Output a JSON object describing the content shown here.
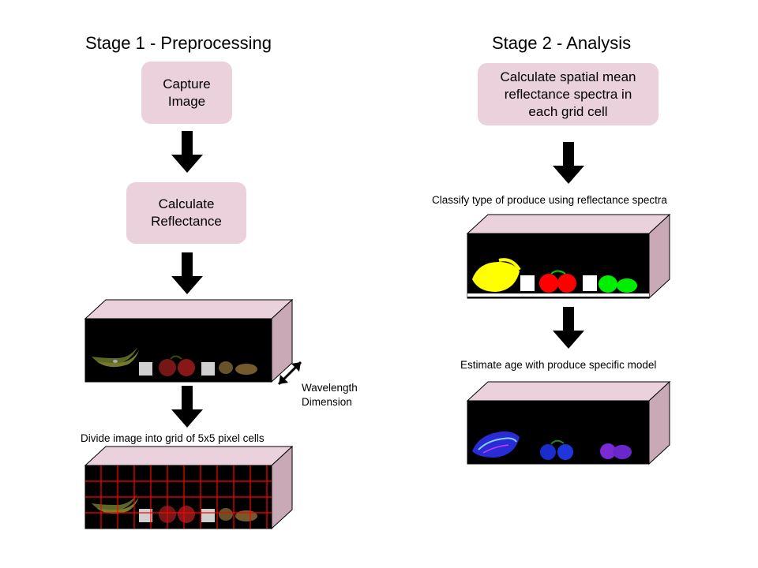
{
  "stage1": {
    "title": "Stage 1 - Preprocessing",
    "steps": [
      "Capture\nImage",
      "Calculate\nReflectance"
    ],
    "wavelength_label": "Wavelength\nDimension",
    "grid_caption": "Divide image into grid of 5x5 pixel cells"
  },
  "stage2": {
    "title": "Stage 2 - Analysis",
    "steps": [
      "Calculate spatial mean\nreflectance spectra in\neach grid cell"
    ],
    "classify_caption": "Classify type of produce using reflectance spectra",
    "age_caption": "Estimate age with produce specific model"
  },
  "colors": {
    "box_fill": "#ead1dc",
    "cube_side": "#c9a9b6",
    "cube_top": "#ead1dc",
    "grid_line": "#ff0000",
    "arrow": "#000000"
  }
}
